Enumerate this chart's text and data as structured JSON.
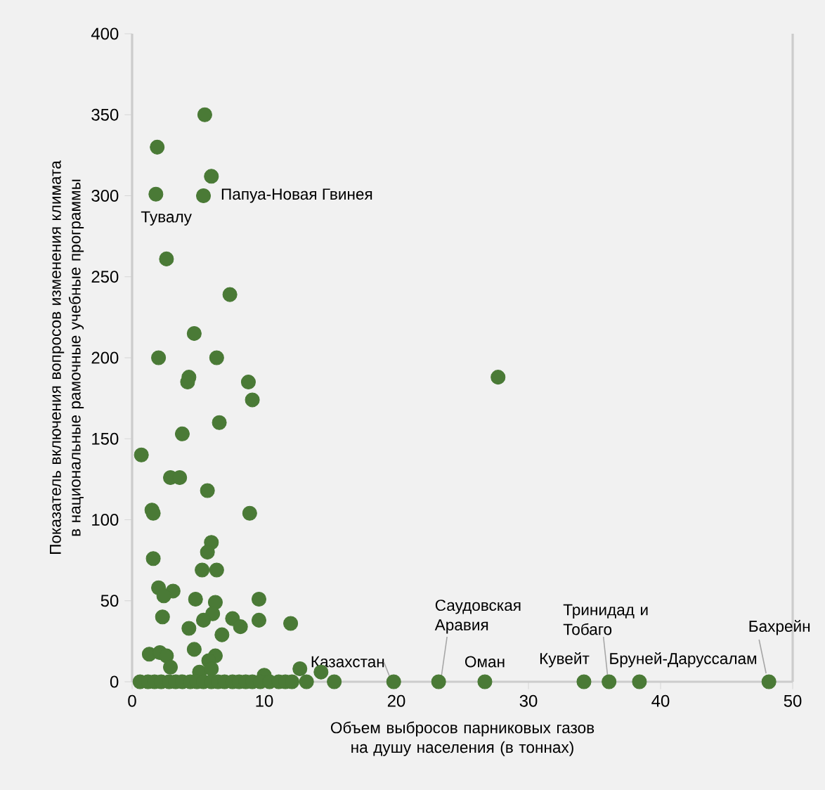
{
  "chart_data": {
    "type": "scatter",
    "xlabel": "Объем выбросов парниковых газов на душу населения (в тоннах)",
    "ylabel": "Показатель включения вопросов изменения климата в национальные рамочные учебные программы",
    "color": "#4a7a36",
    "marker": "circle",
    "xlim": [
      0,
      50
    ],
    "ylim": [
      0,
      400
    ],
    "xticks": [
      0,
      10,
      20,
      30,
      40,
      50
    ],
    "yticks": [
      0,
      50,
      100,
      150,
      200,
      250,
      300,
      350,
      400
    ],
    "x": [
      5.5,
      1.9,
      6.0,
      1.8,
      5.4,
      2.6,
      7.4,
      4.7,
      2.0,
      6.4,
      4.3,
      4.2,
      8.8,
      9.1,
      3.8,
      6.6,
      0.7,
      2.9,
      3.6,
      5.7,
      1.5,
      1.6,
      8.9,
      1.6,
      6.0,
      5.7,
      5.3,
      6.4,
      27.7,
      2.0,
      3.1,
      2.4,
      4.8,
      9.6,
      6.3,
      6.1,
      2.3,
      5.4,
      7.6,
      8.2,
      9.6,
      4.3,
      12.0,
      6.8,
      4.7,
      1.3,
      2.1,
      2.6,
      6.3,
      5.8,
      2.9,
      12.7,
      14.3,
      5.1,
      10.0,
      6.0,
      0.6,
      1.2,
      1.7,
      2.2,
      2.8,
      3.3,
      3.8,
      4.4,
      4.9,
      5.4,
      6.0,
      6.5,
      7.0,
      7.6,
      8.1,
      8.6,
      9.1,
      9.7,
      10.4,
      11.1,
      11.6,
      12.1,
      13.2,
      15.3,
      19.8,
      23.2,
      26.7,
      34.2,
      36.1,
      38.4,
      48.2
    ],
    "values": [
      350,
      330,
      312,
      301,
      300,
      261,
      239,
      215,
      200,
      200,
      188,
      185,
      185,
      174,
      153,
      160,
      140,
      126,
      126,
      118,
      106,
      104,
      104,
      76,
      86,
      80,
      69,
      69,
      188,
      58,
      56,
      53,
      51,
      51,
      49,
      42,
      40,
      38,
      39,
      34,
      38,
      33,
      36,
      29,
      20,
      17,
      18,
      16,
      16,
      13,
      9,
      8,
      6,
      6,
      4,
      8,
      0,
      0,
      0,
      0,
      0,
      0,
      0,
      0,
      0,
      0,
      0,
      0,
      0,
      0,
      0,
      0,
      0,
      0,
      0,
      0,
      0,
      0,
      0,
      0,
      0,
      0,
      0,
      0,
      0,
      0,
      0
    ],
    "annotations": [
      {
        "text": "Тувалу",
        "x": 1.8,
        "y": 301
      },
      {
        "text": "Папуа-Новая Гвинея",
        "x": 5.4,
        "y": 300
      },
      {
        "text": "Казахстан",
        "x": 19.8,
        "y": 0
      },
      {
        "text": "Саудовская Аравия",
        "x": 23.2,
        "y": 0
      },
      {
        "text": "Оман",
        "x": 26.7,
        "y": 0
      },
      {
        "text": "Кувейт",
        "x": 34.2,
        "y": 0
      },
      {
        "text": "Тринидад и Тобаго",
        "x": 36.1,
        "y": 0
      },
      {
        "text": "Бруней-Даруссалам",
        "x": 38.4,
        "y": 0
      },
      {
        "text": "Бахрейн",
        "x": 48.2,
        "y": 0
      }
    ]
  }
}
